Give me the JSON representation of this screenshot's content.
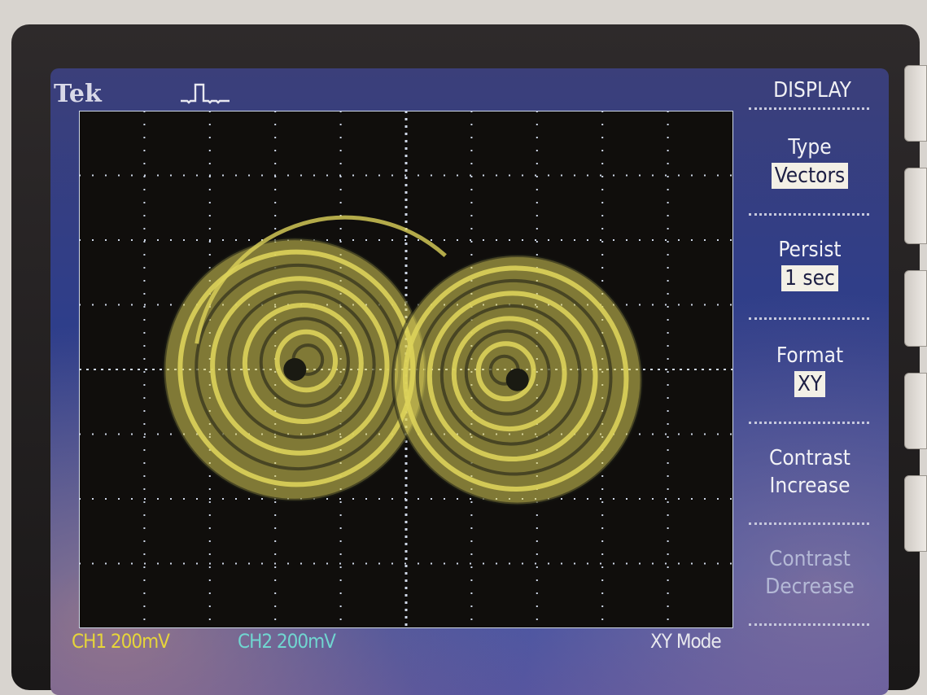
{
  "header": {
    "brand": "Tek"
  },
  "menu": {
    "title": "DISPLAY",
    "items": [
      {
        "label": "Type",
        "value": "Vectors"
      },
      {
        "label": "Persist",
        "value": "1 sec"
      },
      {
        "label": "Format",
        "value": "XY"
      },
      {
        "label_line1": "Contrast",
        "label_line2": "Increase"
      },
      {
        "label_line1": "Contrast",
        "label_line2": "Decrease"
      }
    ]
  },
  "status": {
    "ch1": "CH1  200mV",
    "ch2": "CH2  200mV",
    "mode": "XY Mode"
  },
  "colors": {
    "trace": "#dcd25a",
    "ch1": "#e6d53a",
    "ch2": "#70d6d0",
    "menu_bg": "#2a4aa6"
  },
  "icons": {
    "trigger": "trigger-pulse-icon"
  }
}
